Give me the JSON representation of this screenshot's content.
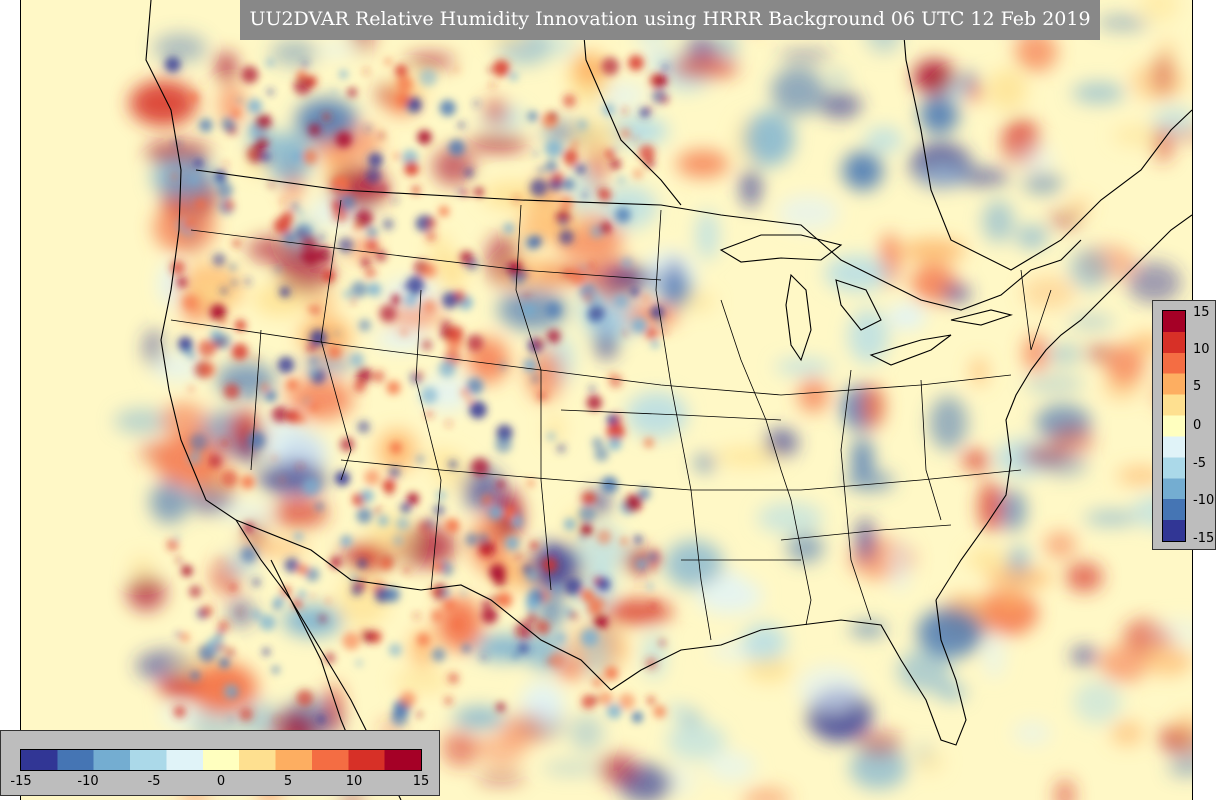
{
  "title": "UU2DVAR Relative Humidity Innovation using HRRR Background 06 UTC 12 Feb 2019",
  "colormap": {
    "name": "RdYlBu_r",
    "stops": [
      "#313695",
      "#4575b4",
      "#74add1",
      "#abd9e9",
      "#e0f3f8",
      "#ffffbf",
      "#fee090",
      "#fdae61",
      "#f46d43",
      "#d73027",
      "#a50026"
    ]
  },
  "legend_right": {
    "ticks": [
      "15",
      "10",
      "5",
      "0",
      "-5",
      "-10",
      "-15"
    ]
  },
  "legend_bottom": {
    "ticks": [
      "-15",
      "-10",
      "-5",
      "0",
      "5",
      "10",
      "15"
    ]
  },
  "colors": {
    "background": "#fff8c6",
    "panel": "#bdbdbd",
    "title_bg": "#888888",
    "boundary": "#000000"
  }
}
